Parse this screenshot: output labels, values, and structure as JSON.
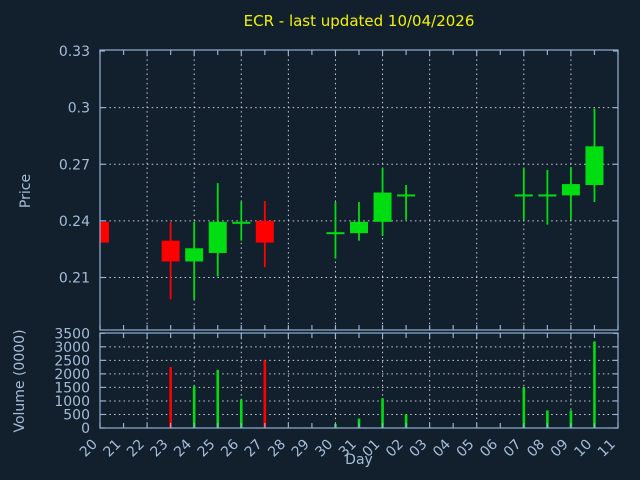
{
  "title": "ECR - last updated 10/04/2026",
  "colors": {
    "background": "#121f2d",
    "axis": "#93b0d3",
    "tick_text": "#a4bdd8",
    "title_text": "#f2f200",
    "grid": "#c9ced4",
    "up": "#00dd11",
    "down": "#ff0000"
  },
  "chart_data": {
    "type": "candlestick",
    "title": "ECR - last updated 10/04/2026",
    "xlabel": "Day",
    "categories": [
      "20",
      "21",
      "22",
      "23",
      "24",
      "25",
      "26",
      "27",
      "28",
      "29",
      "30",
      "31",
      "01",
      "02",
      "03",
      "04",
      "05",
      "06",
      "07",
      "08",
      "09",
      "10",
      "11"
    ],
    "grid": "dotted; vertical line every 2nd day, horizontal line at each y tick",
    "legend": "none",
    "panels": [
      {
        "name": "price",
        "ylabel": "Price",
        "ylim": [
          0.182,
          0.33
        ],
        "yticks": [
          {
            "label": "0.33",
            "value": 0.33
          },
          {
            "label": "0.3",
            "value": 0.3
          },
          {
            "label": "0.27",
            "value": 0.27
          },
          {
            "label": "0.24",
            "value": 0.24
          },
          {
            "label": "0.21",
            "value": 0.21
          }
        ]
      },
      {
        "name": "volume",
        "ylabel": "Volume (0000)",
        "ylim": [
          0,
          3500
        ],
        "yticks": [
          {
            "label": "3500",
            "value": 3500
          },
          {
            "label": "3000",
            "value": 3000
          },
          {
            "label": "2500",
            "value": 2500
          },
          {
            "label": "2000",
            "value": 2000
          },
          {
            "label": "1500",
            "value": 1500
          },
          {
            "label": "1000",
            "value": 1000
          },
          {
            "label": "500",
            "value": 500
          },
          {
            "label": "0",
            "value": 0
          }
        ]
      }
    ],
    "candles": [
      {
        "day": "20",
        "open": 0.2395,
        "high": 0.2395,
        "low": 0.2285,
        "close": 0.2285,
        "volume": 0
      },
      {
        "day": "23",
        "open": 0.2295,
        "high": 0.2395,
        "low": 0.1985,
        "close": 0.2185,
        "volume": 2250
      },
      {
        "day": "24",
        "open": 0.2185,
        "high": 0.2395,
        "low": 0.1985,
        "close": 0.2255,
        "volume": 1550
      },
      {
        "day": "25",
        "open": 0.223,
        "high": 0.26,
        "low": 0.2105,
        "close": 0.2395,
        "volume": 2150
      },
      {
        "day": "26",
        "open": 0.2395,
        "high": 0.25,
        "low": 0.2295,
        "close": 0.2395,
        "volume": 1050
      },
      {
        "day": "27",
        "open": 0.24,
        "high": 0.2505,
        "low": 0.2155,
        "close": 0.2285,
        "volume": 2500
      },
      {
        "day": "30",
        "open": 0.234,
        "high": 0.25,
        "low": 0.22,
        "close": 0.234,
        "volume": 150
      },
      {
        "day": "31",
        "open": 0.2335,
        "high": 0.25,
        "low": 0.2295,
        "close": 0.2395,
        "volume": 350
      },
      {
        "day": "01",
        "open": 0.2395,
        "high": 0.268,
        "low": 0.232,
        "close": 0.255,
        "volume": 1100
      },
      {
        "day": "02",
        "open": 0.254,
        "high": 0.259,
        "low": 0.2405,
        "close": 0.254,
        "volume": 500
      },
      {
        "day": "07",
        "open": 0.254,
        "high": 0.268,
        "low": 0.2405,
        "close": 0.254,
        "volume": 1500
      },
      {
        "day": "08",
        "open": 0.254,
        "high": 0.267,
        "low": 0.238,
        "close": 0.254,
        "volume": 650
      },
      {
        "day": "09",
        "open": 0.2535,
        "high": 0.2685,
        "low": 0.2405,
        "close": 0.2595,
        "volume": 650
      },
      {
        "day": "10",
        "open": 0.259,
        "high": 0.2995,
        "low": 0.25,
        "close": 0.2795,
        "volume": 3200
      }
    ]
  }
}
